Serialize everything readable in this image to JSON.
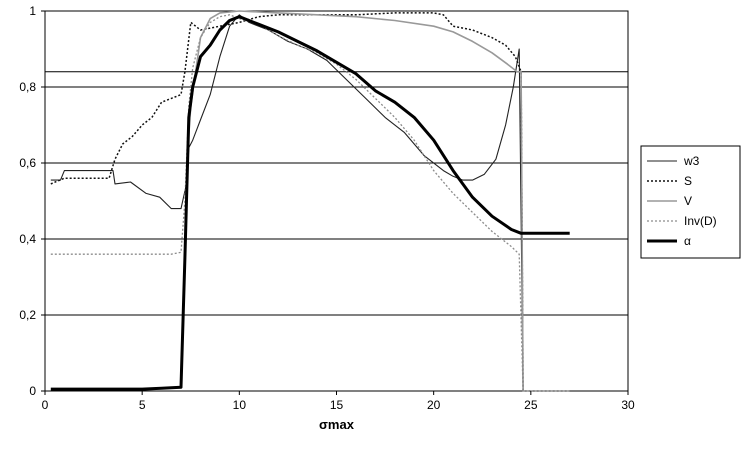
{
  "chart_data": {
    "type": "line",
    "title": "",
    "xlabel": "σmax",
    "ylabel": "",
    "xlim": [
      0,
      30
    ],
    "ylim": [
      0,
      1
    ],
    "x_ticks": [
      "0",
      "5",
      "10",
      "15",
      "20",
      "25",
      "30"
    ],
    "y_ticks": [
      "0",
      "0,2",
      "0,4",
      "0,6",
      "0,8",
      "1"
    ],
    "grid": "horizontal",
    "extra_hline": 0.84,
    "legend_position": "right",
    "series": [
      {
        "name": "w3",
        "style": "thin-solid",
        "color": "#222222",
        "x": [
          0.3,
          0.8,
          1.0,
          3.5,
          3.6,
          4.4,
          5.2,
          5.9,
          6.5,
          7.0,
          7.3,
          7.4,
          7.6,
          7.9,
          8.5,
          9.0,
          9.5,
          10.0,
          10.5,
          11.5,
          12.5,
          13.5,
          14.5,
          15.5,
          16.5,
          17.5,
          18.5,
          19.5,
          20.5,
          21.0,
          21.5,
          22.0,
          22.6,
          23.2,
          23.7,
          24.1,
          24.4,
          24.6,
          25.0,
          27.0
        ],
        "y": [
          0.555,
          0.555,
          0.58,
          0.58,
          0.545,
          0.55,
          0.52,
          0.51,
          0.48,
          0.48,
          0.55,
          0.64,
          0.66,
          0.7,
          0.78,
          0.88,
          0.96,
          0.99,
          0.97,
          0.95,
          0.92,
          0.9,
          0.87,
          0.82,
          0.77,
          0.72,
          0.68,
          0.62,
          0.58,
          0.565,
          0.555,
          0.555,
          0.57,
          0.61,
          0.7,
          0.8,
          0.9,
          0.0,
          0.0,
          0.0
        ]
      },
      {
        "name": "S",
        "style": "dotted",
        "color": "#111111",
        "x": [
          0.3,
          1.0,
          3.3,
          3.6,
          4.0,
          4.5,
          5.0,
          5.5,
          6.0,
          6.5,
          7.0,
          7.2,
          7.5,
          8.0,
          8.5,
          9.0,
          10.0,
          11.0,
          12.0,
          14.0,
          16.0,
          18.0,
          20.0,
          20.5,
          21.0,
          22.0,
          23.0,
          23.7,
          24.2,
          24.5,
          24.6,
          25.0,
          27.0
        ],
        "y": [
          0.545,
          0.56,
          0.56,
          0.61,
          0.65,
          0.67,
          0.7,
          0.72,
          0.76,
          0.77,
          0.78,
          0.84,
          0.97,
          0.95,
          0.955,
          0.96,
          0.97,
          0.985,
          0.99,
          0.99,
          0.99,
          0.995,
          0.995,
          0.99,
          0.96,
          0.95,
          0.93,
          0.91,
          0.88,
          0.84,
          0.0,
          0.0,
          0.0
        ]
      },
      {
        "name": "V",
        "style": "thin-solid-gray",
        "color": "#999999",
        "x": [
          7.3,
          7.5,
          8.0,
          8.5,
          9.0,
          10.0,
          12.0,
          14.0,
          16.0,
          18.0,
          20.0,
          21.0,
          22.0,
          23.0,
          23.8,
          24.3,
          24.5,
          24.6,
          25.0,
          27.0
        ],
        "y": [
          0.6,
          0.75,
          0.93,
          0.98,
          0.995,
          1.0,
          0.995,
          0.99,
          0.985,
          0.975,
          0.96,
          0.945,
          0.92,
          0.89,
          0.86,
          0.84,
          0.84,
          0.0,
          0.0,
          0.0
        ]
      },
      {
        "name": "Inv(D)",
        "style": "dotted-gray",
        "color": "#8c8c8c",
        "x": [
          0.3,
          6.5,
          7.0,
          7.2,
          7.4,
          7.6,
          8.0,
          8.5,
          9.0,
          9.5,
          10.0,
          11.0,
          12.0,
          13.0,
          14.0,
          15.0,
          16.0,
          17.0,
          18.0,
          19.0,
          20.0,
          21.0,
          22.0,
          23.0,
          24.0,
          24.4,
          24.6,
          25.0,
          27.0
        ],
        "y": [
          0.36,
          0.36,
          0.365,
          0.5,
          0.75,
          0.85,
          0.93,
          0.97,
          0.985,
          0.99,
          0.98,
          0.965,
          0.935,
          0.91,
          0.89,
          0.86,
          0.82,
          0.77,
          0.72,
          0.66,
          0.58,
          0.52,
          0.47,
          0.42,
          0.38,
          0.36,
          0.0,
          0.0,
          0.0
        ]
      },
      {
        "name": "α",
        "style": "thick-solid",
        "color": "#000000",
        "x": [
          0.3,
          5.0,
          6.0,
          7.0,
          7.2,
          7.4,
          7.6,
          8.0,
          8.5,
          9.0,
          9.5,
          10.0,
          11.0,
          12.0,
          13.0,
          14.0,
          15.0,
          16.0,
          17.0,
          18.0,
          19.0,
          20.0,
          21.0,
          22.0,
          23.0,
          24.0,
          24.5,
          25.0,
          26.0,
          27.0
        ],
        "y": [
          0.005,
          0.005,
          0.007,
          0.01,
          0.35,
          0.72,
          0.8,
          0.88,
          0.91,
          0.95,
          0.975,
          0.985,
          0.965,
          0.945,
          0.92,
          0.895,
          0.865,
          0.835,
          0.79,
          0.76,
          0.72,
          0.66,
          0.58,
          0.51,
          0.46,
          0.425,
          0.415,
          0.415,
          0.415,
          0.415
        ]
      }
    ]
  }
}
